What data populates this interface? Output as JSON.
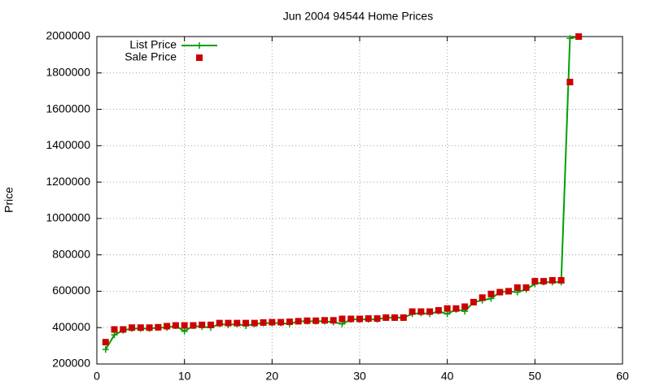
{
  "chart_data": {
    "type": "line",
    "title": "Jun 2004 94544 Home Prices",
    "y_label": "Price",
    "x": [
      1,
      2,
      3,
      4,
      5,
      6,
      7,
      8,
      9,
      10,
      11,
      12,
      13,
      14,
      15,
      16,
      17,
      18,
      19,
      20,
      21,
      22,
      23,
      24,
      25,
      26,
      27,
      28,
      29,
      30,
      31,
      32,
      33,
      34,
      35,
      36,
      37,
      38,
      39,
      40,
      41,
      42,
      43,
      44,
      45,
      46,
      47,
      48,
      49,
      50,
      51,
      52,
      53,
      54,
      55
    ],
    "series": [
      {
        "name": "List Price",
        "color": "#00a000",
        "mode": "linespoints",
        "values": [
          280000,
          360000,
          385000,
          395000,
          395000,
          395000,
          400000,
          400000,
          410000,
          380000,
          410000,
          405000,
          400000,
          420000,
          415000,
          420000,
          410000,
          420000,
          425000,
          425000,
          425000,
          420000,
          435000,
          435000,
          435000,
          435000,
          430000,
          420000,
          445000,
          445000,
          445000,
          445000,
          455000,
          455000,
          455000,
          475000,
          480000,
          475000,
          490000,
          475000,
          500000,
          490000,
          540000,
          550000,
          560000,
          595000,
          600000,
          595000,
          610000,
          640000,
          650000,
          650000,
          650000,
          1990000,
          2000000
        ]
      },
      {
        "name": "Sale Price",
        "color": "#cc0000",
        "mode": "points",
        "values": [
          320000,
          390000,
          390000,
          400000,
          400000,
          400000,
          402000,
          408000,
          412000,
          412000,
          412000,
          415000,
          415000,
          425000,
          425000,
          425000,
          425000,
          425000,
          428000,
          430000,
          430000,
          432000,
          435000,
          438000,
          438000,
          440000,
          440000,
          448000,
          448000,
          448000,
          450000,
          450000,
          455000,
          455000,
          455000,
          488000,
          488000,
          488000,
          495000,
          505000,
          505000,
          515000,
          540000,
          565000,
          585000,
          595000,
          600000,
          620000,
          620000,
          655000,
          655000,
          660000,
          660000,
          1750000,
          2000000
        ]
      }
    ],
    "xlim": [
      0,
      60
    ],
    "xticks": [
      0,
      10,
      20,
      30,
      40,
      50,
      60
    ],
    "ylim": [
      200000,
      2000000
    ],
    "yticks": [
      200000,
      400000,
      600000,
      800000,
      1000000,
      1200000,
      1400000,
      1600000,
      1800000,
      2000000
    ],
    "grid": true,
    "legend": "top-left"
  }
}
